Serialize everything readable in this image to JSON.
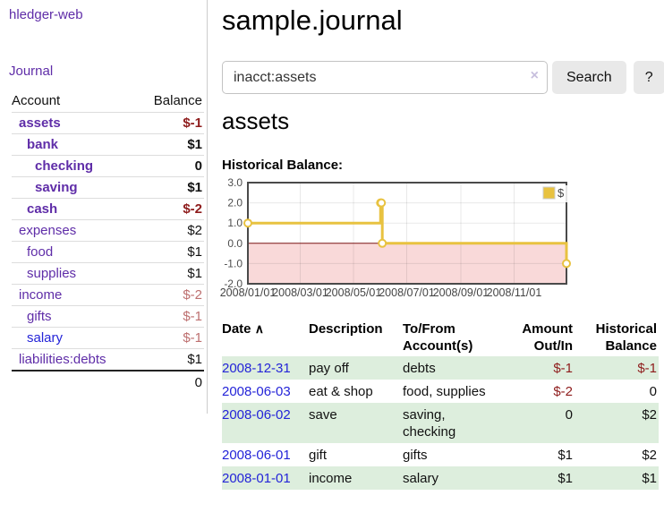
{
  "sidebar": {
    "brand": "hledger-web",
    "nav_journal": "Journal",
    "accounts_table": {
      "headers": {
        "account": "Account",
        "balance": "Balance"
      },
      "rows": [
        {
          "name": "assets",
          "indent": 0,
          "name_class": "c-purple b",
          "balance": "$-1",
          "balance_class": "c-darkred b"
        },
        {
          "name": "bank",
          "indent": 1,
          "name_class": "c-purple b",
          "balance": "$1",
          "balance_class": "c-black b"
        },
        {
          "name": "checking",
          "indent": 2,
          "name_class": "c-purple b",
          "balance": "0",
          "balance_class": "c-black b"
        },
        {
          "name": "saving",
          "indent": 2,
          "name_class": "c-purple b",
          "balance": "$1",
          "balance_class": "c-black b"
        },
        {
          "name": "cash",
          "indent": 1,
          "name_class": "c-purple b",
          "balance": "$-2",
          "balance_class": "c-darkred b"
        },
        {
          "name": "expenses",
          "indent": 0,
          "name_class": "c-purple",
          "balance": "$2",
          "balance_class": "c-black"
        },
        {
          "name": "food",
          "indent": 1,
          "name_class": "c-purple",
          "balance": "$1",
          "balance_class": "c-black"
        },
        {
          "name": "supplies",
          "indent": 1,
          "name_class": "c-purple",
          "balance": "$1",
          "balance_class": "c-black"
        },
        {
          "name": "income",
          "indent": 0,
          "name_class": "c-purple",
          "balance": "$-2",
          "balance_class": "c-rose"
        },
        {
          "name": "gifts",
          "indent": 1,
          "name_class": "c-purple",
          "balance": "$-1",
          "balance_class": "c-rose"
        },
        {
          "name": "salary",
          "indent": 1,
          "name_class": "c-blue",
          "balance": "$-1",
          "balance_class": "c-rose"
        },
        {
          "name": "liabilities:debts",
          "indent": 0,
          "name_class": "c-purple",
          "balance": "$1",
          "balance_class": "c-black"
        }
      ],
      "total": "0"
    }
  },
  "main": {
    "title": "sample.journal",
    "search": {
      "value": "inacct:assets",
      "clear_label": "×",
      "button": "Search",
      "help_button": "?"
    },
    "account_heading": "assets",
    "chart_label": "Historical Balance:",
    "register": {
      "headers": {
        "date": "Date",
        "sort_arrow": "∧",
        "description": "Description",
        "accounts": "To/From Account(s)",
        "amount": "Amount Out/In",
        "balance": "Historical Balance"
      },
      "rows": [
        {
          "date": "2008-12-31",
          "description": "pay off",
          "accounts": "debts",
          "amount": "$-1",
          "amount_class": "c-darkred",
          "balance": "$-1",
          "balance_class": "c-darkred"
        },
        {
          "date": "2008-06-03",
          "description": "eat & shop",
          "accounts": "food, supplies",
          "amount": "$-2",
          "amount_class": "c-darkred",
          "balance": "0",
          "balance_class": "c-black"
        },
        {
          "date": "2008-06-02",
          "description": "save",
          "accounts": "saving, checking",
          "amount": "0",
          "amount_class": "c-black",
          "balance": "$2",
          "balance_class": "c-black"
        },
        {
          "date": "2008-06-01",
          "description": "gift",
          "accounts": "gifts",
          "amount": "$1",
          "amount_class": "c-black",
          "balance": "$2",
          "balance_class": "c-black"
        },
        {
          "date": "2008-01-01",
          "description": "income",
          "accounts": "salary",
          "amount": "$1",
          "amount_class": "c-black",
          "balance": "$1",
          "balance_class": "c-black"
        }
      ]
    }
  },
  "colors": {
    "link_purple": "#5f2da8",
    "link_blue": "#2424d8",
    "negative_dark": "#8e1c1c",
    "negative_muted": "#bd6f6f",
    "row_stripe_green": "#ddeedd",
    "button_gray": "#e9e9e9"
  },
  "chart_data": {
    "type": "line",
    "subtype": "step-left",
    "title": "Historical Balance:",
    "legend_position": "top-right",
    "grid": true,
    "series": [
      {
        "name": "$",
        "color": "#e8c240",
        "marker_fill": "#ffffff",
        "points": [
          {
            "date": "2008/01/01",
            "day": 0,
            "value": 1
          },
          {
            "date": "2008/06/01",
            "day": 152,
            "value": 2
          },
          {
            "date": "2008/06/02",
            "day": 153,
            "value": 2
          },
          {
            "date": "2008/06/03",
            "day": 154,
            "value": 0
          },
          {
            "date": "2008/12/31",
            "day": 365,
            "value": -1
          }
        ]
      }
    ],
    "x_ticks": [
      {
        "label": "2008/01/01",
        "day": 0
      },
      {
        "label": "2008/03/01",
        "day": 60
      },
      {
        "label": "2008/05/01",
        "day": 121
      },
      {
        "label": "2008/07/01",
        "day": 182
      },
      {
        "label": "2008/09/01",
        "day": 244
      },
      {
        "label": "2008/11/01",
        "day": 305
      }
    ],
    "y_ticks": [
      "3.0",
      "2.0",
      "1.0",
      "0.0",
      "-1.0",
      "-2.0"
    ],
    "ylim": [
      -2,
      3
    ],
    "xlim_days": [
      0,
      365
    ],
    "negative_fill": "#f9d9d9",
    "zero_line_color": "#7a1212",
    "border_color": "#4a4a4a",
    "gridline_color": "rgba(0,0,0,0.09)",
    "tick_label_color": "#4d4d4d"
  }
}
